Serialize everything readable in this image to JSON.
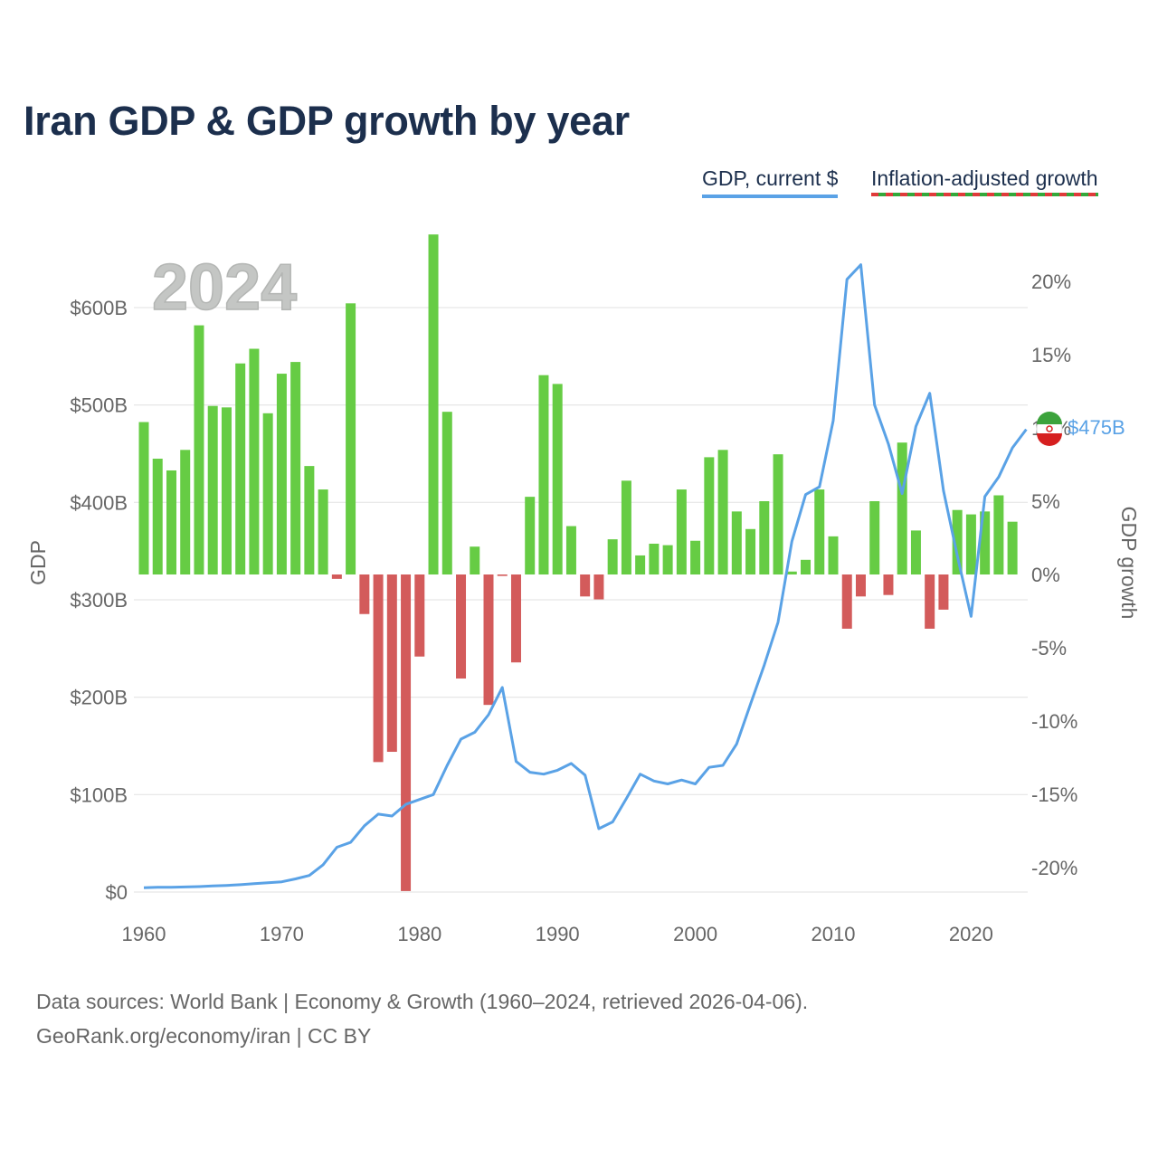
{
  "title": "Iran GDP & GDP growth by year",
  "legend": {
    "gdp": "GDP, current $",
    "growth": "Inflation-adjusted growth"
  },
  "year_watermark": "2024",
  "end_label": "$475B",
  "flag_icon": "iran-flag-icon",
  "colors": {
    "line": "#5aa2e6",
    "positive": "#66cc44",
    "negative": "#d35b5b",
    "title": "#1c2f4d"
  },
  "footer": {
    "sources": "Data sources: World Bank | Economy & Growth (1960–2024, retrieved 2026-04-06).",
    "credit": "GeoRank.org/economy/iran | CC BY"
  },
  "chart_data": {
    "type": "bar+line",
    "x_range": [
      1960,
      2024
    ],
    "x_ticks": [
      1960,
      1970,
      1980,
      1990,
      2000,
      2010,
      2020
    ],
    "x_tick_labels": [
      "1960",
      "1970",
      "1980",
      "1990",
      "2000",
      "2010",
      "2020"
    ],
    "left_axis": {
      "label": "GDP",
      "range": [
        0,
        600
      ],
      "ticks": [
        0,
        100,
        200,
        300,
        400,
        500,
        600
      ],
      "tick_labels": [
        "$0",
        "$100B",
        "$200B",
        "$300B",
        "$400B",
        "$500B",
        "$600B"
      ]
    },
    "right_axis": {
      "label": "GDP growth",
      "range": [
        -22,
        20
      ],
      "ticks": [
        20,
        15,
        10,
        5,
        0,
        -5,
        -10,
        -15,
        -20
      ],
      "tick_labels": [
        "20%",
        "15%",
        "10%",
        "5%",
        "0%",
        "-5%",
        "-10%",
        "-15%",
        "-20%"
      ]
    },
    "growth_series": {
      "name": "Inflation-adjusted growth",
      "unit": "%",
      "years": [
        1960,
        1961,
        1962,
        1963,
        1964,
        1965,
        1966,
        1967,
        1968,
        1969,
        1970,
        1971,
        1972,
        1973,
        1974,
        1975,
        1976,
        1977,
        1978,
        1979,
        1980,
        1981,
        1982,
        1983,
        1984,
        1985,
        1986,
        1987,
        1988,
        1989,
        1990,
        1991,
        1992,
        1993,
        1994,
        1995,
        1996,
        1997,
        1998,
        1999,
        2000,
        2001,
        2002,
        2003,
        2004,
        2005,
        2006,
        2007,
        2008,
        2009,
        2010,
        2011,
        2012,
        2013,
        2014,
        2015,
        2016,
        2017,
        2018,
        2019,
        2020,
        2021,
        2022,
        2023,
        2024
      ],
      "values": [
        10.4,
        7.9,
        7.1,
        8.5,
        17.0,
        11.5,
        11.4,
        14.4,
        15.4,
        11.0,
        13.7,
        14.5,
        7.4,
        5.8,
        -0.3,
        18.5,
        -2.7,
        -12.8,
        -12.1,
        -21.6,
        -5.6,
        23.2,
        11.1,
        -7.1,
        1.9,
        -8.9,
        -0.1,
        -6.0,
        5.3,
        13.6,
        13.0,
        3.3,
        -1.5,
        -1.7,
        2.4,
        6.4,
        1.3,
        2.1,
        2.0,
        5.8,
        2.3,
        8.0,
        8.5,
        4.3,
        3.1,
        5.0,
        8.2,
        0.2,
        1.0,
        5.8,
        2.6,
        -3.7,
        -1.5,
        5.0,
        -1.4,
        9.0,
        3.0,
        -3.7,
        -2.4,
        4.4,
        4.1,
        4.3,
        5.4,
        3.6,
        0
      ]
    },
    "gdp_series": {
      "name": "GDP, current $",
      "unit": "billion US$",
      "years": [
        1960,
        1961,
        1962,
        1963,
        1964,
        1965,
        1966,
        1967,
        1968,
        1969,
        1970,
        1971,
        1972,
        1973,
        1974,
        1975,
        1976,
        1977,
        1978,
        1979,
        1980,
        1981,
        1982,
        1983,
        1984,
        1985,
        1986,
        1987,
        1988,
        1989,
        1990,
        1991,
        1992,
        1993,
        1994,
        1995,
        1996,
        1997,
        1998,
        1999,
        2000,
        2001,
        2002,
        2003,
        2004,
        2005,
        2006,
        2007,
        2008,
        2009,
        2010,
        2011,
        2012,
        2013,
        2014,
        2015,
        2016,
        2017,
        2018,
        2019,
        2020,
        2021,
        2022,
        2023,
        2024
      ],
      "values": [
        4.5,
        4.8,
        4.9,
        5.2,
        5.6,
        6.2,
        6.8,
        7.5,
        8.5,
        9.5,
        10.5,
        13.5,
        17.0,
        28.0,
        46.0,
        51.0,
        68.0,
        80.0,
        78.0,
        90.0,
        95.0,
        100.0,
        130.0,
        157.0,
        164.0,
        182.0,
        210.0,
        134.0,
        123.0,
        121.0,
        125.0,
        132.0,
        120.0,
        65.0,
        72.0,
        96.0,
        121.0,
        114.0,
        111.0,
        115.0,
        111.0,
        128.0,
        130.0,
        152.0,
        193.0,
        233.0,
        277.0,
        360.0,
        408.0,
        416.0,
        484.0,
        629.0,
        644.0,
        500.0,
        460.0,
        409.0,
        478.0,
        512.0,
        412.0,
        345.0,
        283.0,
        406.0,
        426.0,
        456.0,
        475.0
      ]
    }
  }
}
